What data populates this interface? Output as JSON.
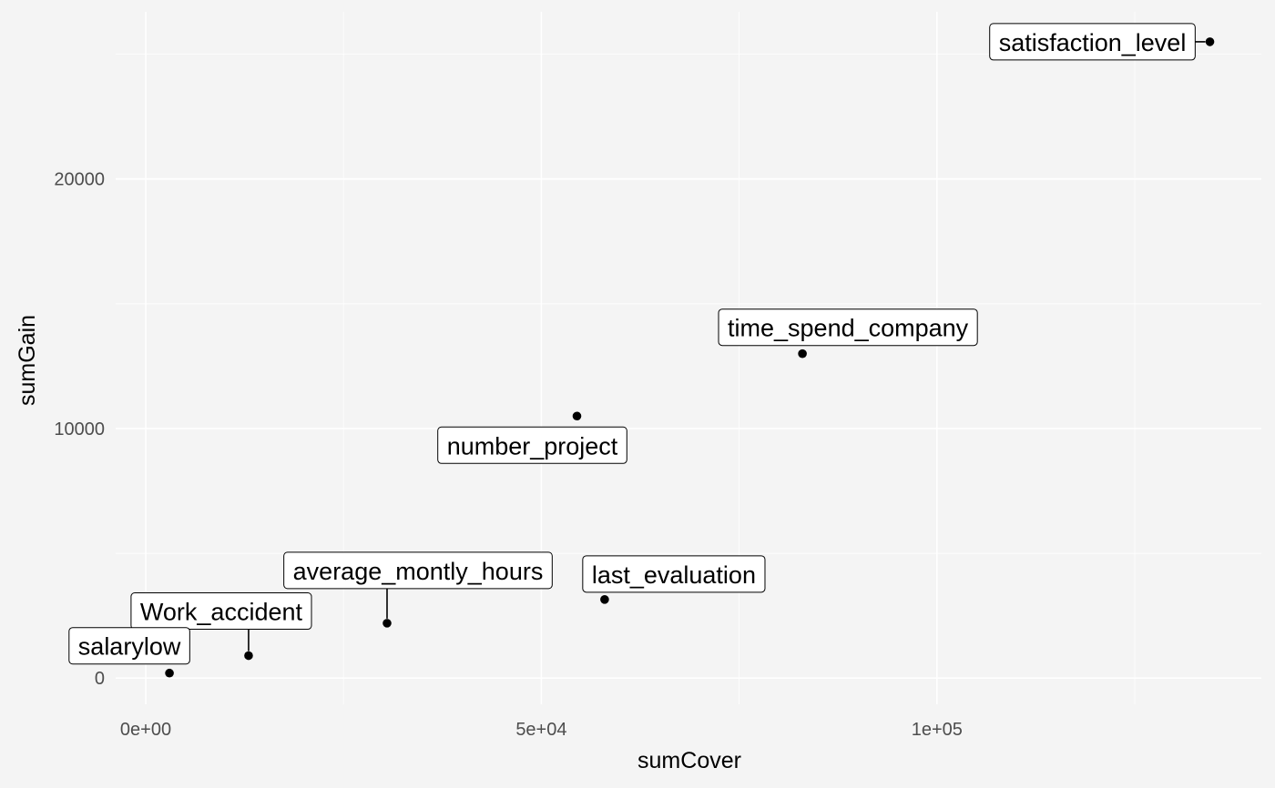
{
  "chart_data": {
    "type": "scatter",
    "title": "",
    "xlabel": "sumCover",
    "ylabel": "sumGain",
    "xlim": [
      -3800,
      141000
    ],
    "ylim": [
      -1050,
      26700
    ],
    "x_ticks": [
      0,
      50000,
      100000
    ],
    "x_tick_labels": [
      "0e+00",
      "5e+04",
      "1e+05"
    ],
    "x_minor_ticks": [
      25000,
      75000,
      125000
    ],
    "y_ticks": [
      0,
      10000,
      20000
    ],
    "y_tick_labels": [
      "0",
      "10000",
      "20000"
    ],
    "y_minor_ticks": [
      5000,
      15000,
      25000
    ],
    "grid": true,
    "legend": "none",
    "points": [
      {
        "label": "satisfaction_level",
        "x": 134500,
        "y": 25500
      },
      {
        "label": "time_spend_company",
        "x": 83000,
        "y": 13000
      },
      {
        "label": "number_project",
        "x": 54500,
        "y": 10500
      },
      {
        "label": "last_evaluation",
        "x": 58000,
        "y": 3150
      },
      {
        "label": "average_montly_hours",
        "x": 30500,
        "y": 2200
      },
      {
        "label": "Work_accident",
        "x": 13000,
        "y": 900
      },
      {
        "label": "salarylow",
        "x": 3000,
        "y": 200
      }
    ]
  }
}
